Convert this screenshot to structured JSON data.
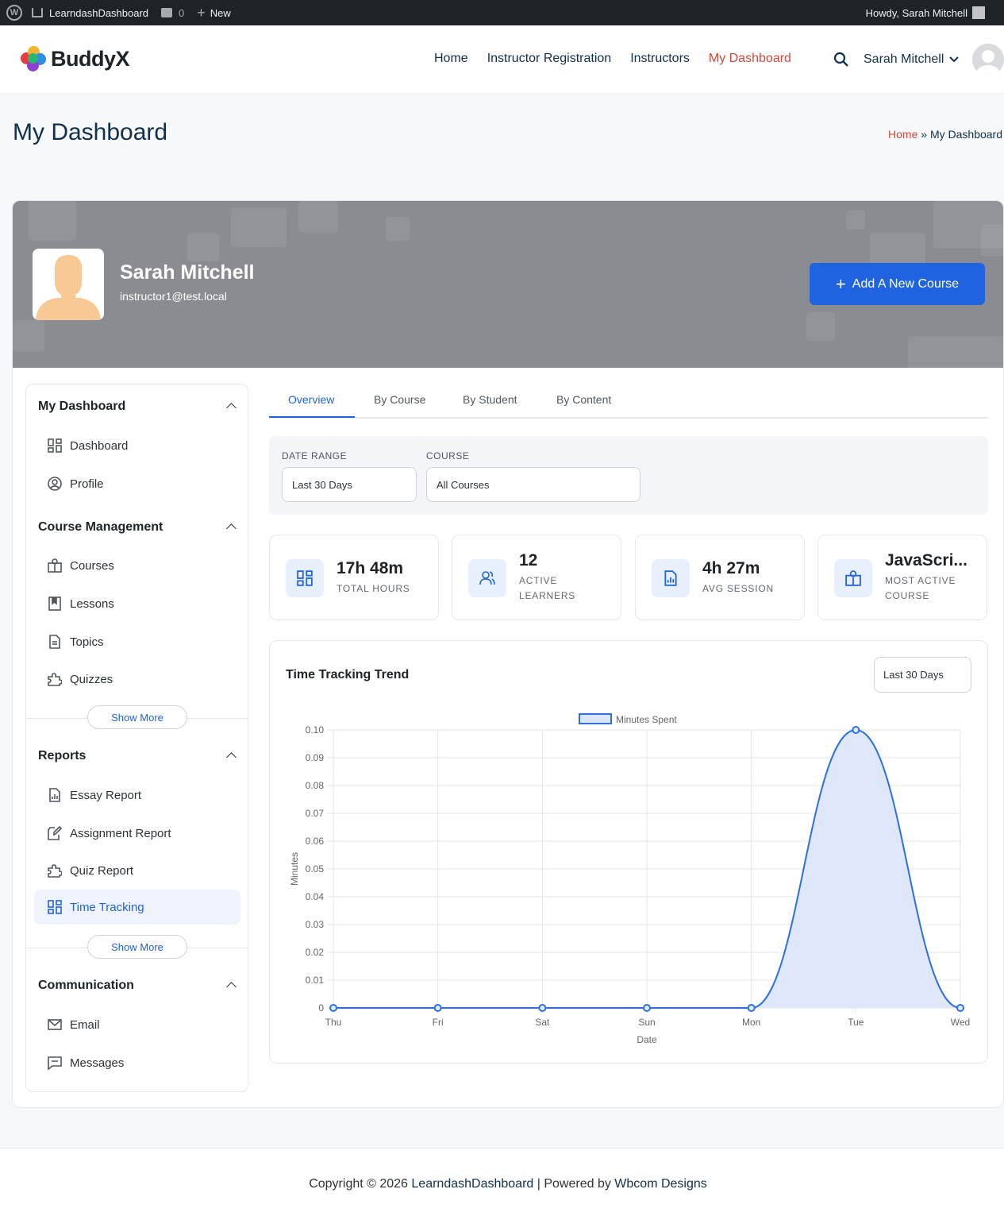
{
  "adminbar": {
    "site_name": "LearndashDashboard",
    "comments_count": "0",
    "new_label": "New",
    "howdy": "Howdy, Sarah Mitchell"
  },
  "header": {
    "logo_text": "BuddyX",
    "nav": [
      "Home",
      "Instructor Registration",
      "Instructors",
      "My Dashboard"
    ],
    "active_nav": "My Dashboard",
    "user_name": "Sarah Mitchell"
  },
  "page": {
    "title": "My Dashboard",
    "breadcrumb_home": "Home",
    "breadcrumb_sep": "»",
    "breadcrumb_current": "My Dashboard"
  },
  "profile": {
    "name": "Sarah Mitchell",
    "email": "instructor1@test.local",
    "add_course_label": "Add A New Course"
  },
  "sidebar": {
    "sections": [
      {
        "title": "My Dashboard",
        "items": [
          "Dashboard",
          "Profile"
        ]
      },
      {
        "title": "Course Management",
        "items": [
          "Courses",
          "Lessons",
          "Topics",
          "Quizzes"
        ],
        "show_more": "Show More"
      },
      {
        "title": "Reports",
        "items": [
          "Essay Report",
          "Assignment Report",
          "Quiz Report",
          "Time Tracking"
        ],
        "show_more": "Show More"
      },
      {
        "title": "Communication",
        "items": [
          "Email",
          "Messages"
        ]
      }
    ],
    "active_item": "Time Tracking"
  },
  "tabs": [
    "Overview",
    "By Course",
    "By Student",
    "By Content"
  ],
  "active_tab": "Overview",
  "filters": {
    "date_range_label": "DATE RANGE",
    "date_range_value": "Last 30 Days",
    "course_label": "COURSE",
    "course_value": "All Courses"
  },
  "stats": [
    {
      "value": "17h 48m",
      "label": "TOTAL HOURS",
      "icon": "grid-icon"
    },
    {
      "value": "12",
      "label": "ACTIVE LEARNERS",
      "icon": "users-icon"
    },
    {
      "value": "4h 27m",
      "label": "AVG SESSION",
      "icon": "report-icon"
    },
    {
      "value": "JavaScri...",
      "label": "MOST ACTIVE COURSE",
      "icon": "book-icon"
    }
  ],
  "chart": {
    "title": "Time Tracking Trend",
    "range_value": "Last 30 Days"
  },
  "chart_data": {
    "type": "area",
    "categories": [
      "Thu",
      "Fri",
      "Sat",
      "Sun",
      "Mon",
      "Tue",
      "Wed"
    ],
    "series": [
      {
        "name": "Minutes Spent",
        "values": [
          0,
          0,
          0,
          0,
          0,
          0.1,
          0
        ]
      }
    ],
    "xlabel": "Date",
    "ylabel": "Minutes",
    "ylim": [
      0,
      0.1
    ],
    "yticks": [
      "0",
      "0.01",
      "0.02",
      "0.03",
      "0.04",
      "0.05",
      "0.06",
      "0.07",
      "0.08",
      "0.09",
      "0.10"
    ],
    "grid": true,
    "legend": "top-center",
    "colors": {
      "line": "#2f6fdf",
      "fill": "#dbe6fb"
    }
  },
  "footer": {
    "prefix": "Copyright © 2026",
    "site": "LearndashDashboard",
    "middle": "| Powered by",
    "credit": "Wbcom Designs"
  },
  "colors": {
    "accent": "#1f63e0",
    "nav_active": "#d2483a",
    "heading": "#11304a"
  }
}
